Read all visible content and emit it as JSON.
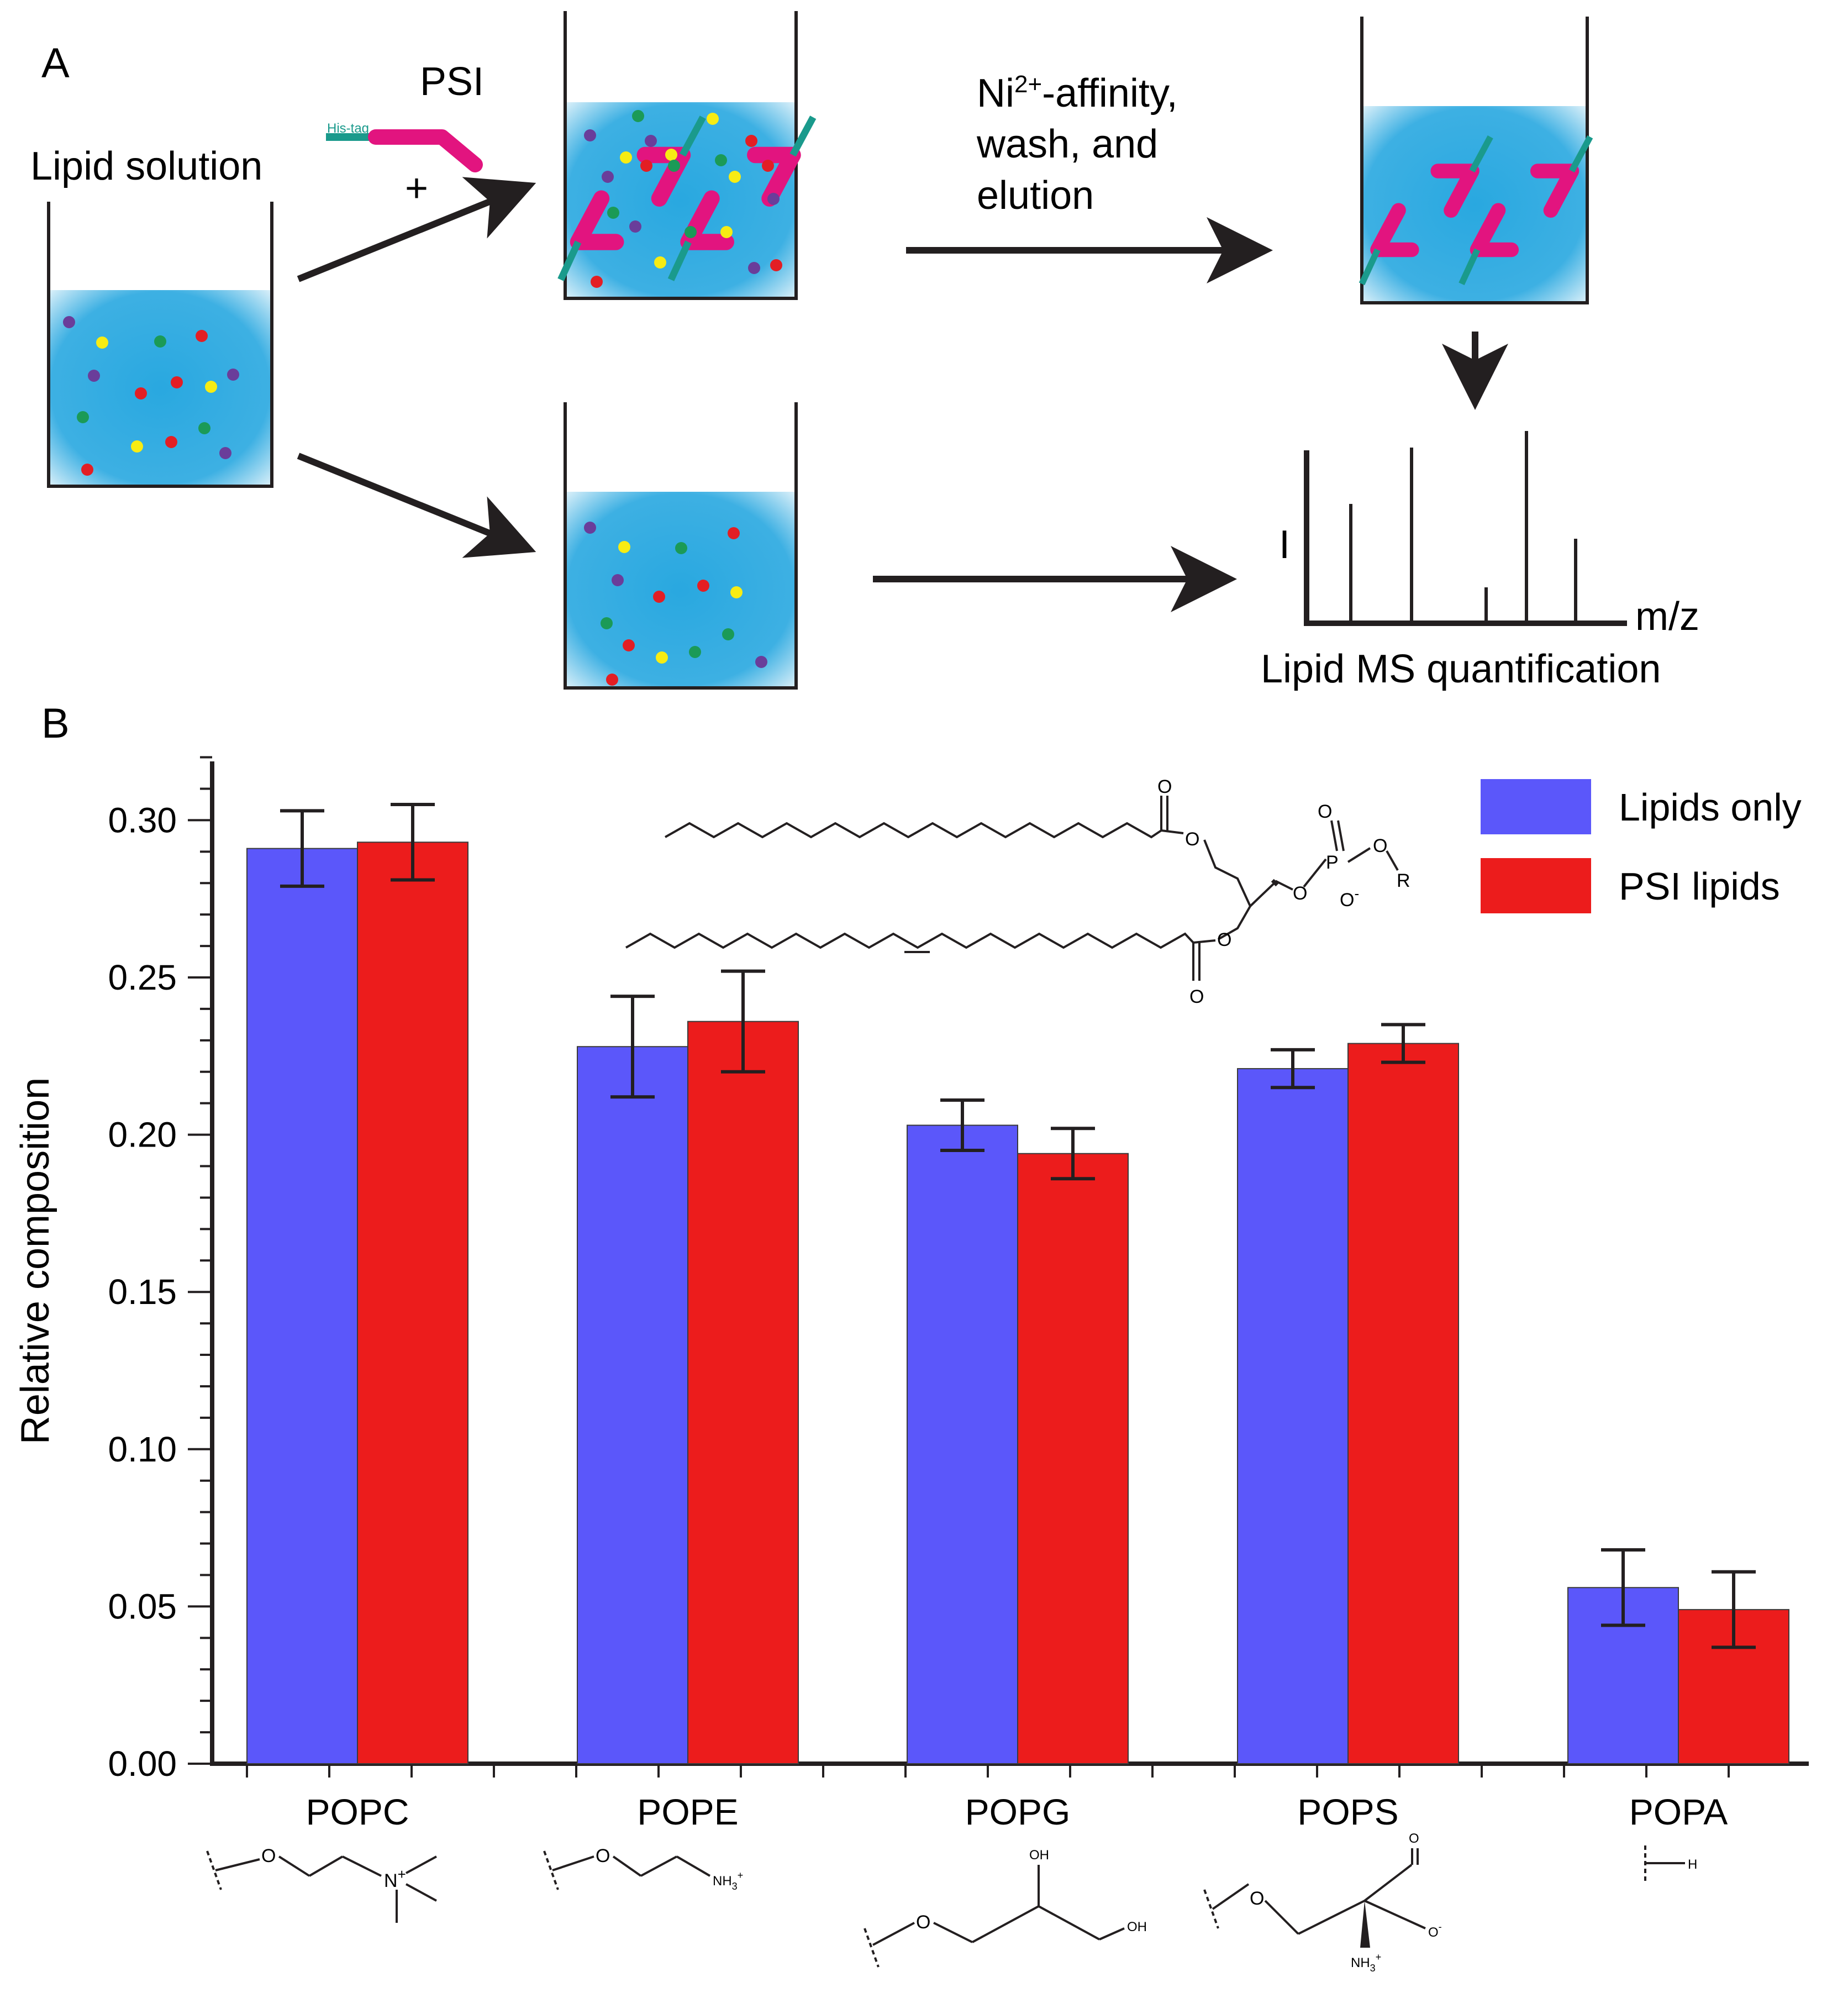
{
  "panel_a": {
    "label": "A",
    "lipid_solution_label": "Lipid solution",
    "psi_label": "PSI",
    "plus_sign": "+",
    "his_tag_label": "His-tag",
    "ni_line1_prefix": "Ni",
    "ni_superscript": "2+",
    "ni_line1_suffix": "-affinity,",
    "ni_line2": "wash, and",
    "ni_line3": "elution",
    "ms_y_label": "I",
    "ms_x_label": "m/z",
    "ms_caption": "Lipid MS quantification",
    "colors": {
      "psi_protein": "#e2147f",
      "his_tag": "#1a9a8c",
      "solution": "#29a8e0",
      "lipid_purple": "#6a3d9a",
      "lipid_yellow": "#f7ec13",
      "lipid_green": "#1b9a57",
      "lipid_red": "#e31e24"
    }
  },
  "panel_b": {
    "label": "B",
    "lipid_structure": {
      "oxygen": "O",
      "phosphorus": "P",
      "r_group": "R",
      "charge_minus": "-"
    },
    "headgroups": {
      "popc": {
        "o": "O",
        "n": "N",
        "charge": "+"
      },
      "pope": {
        "o": "O",
        "amine": "NH",
        "sub": "3",
        "charge": "+"
      },
      "popg": {
        "o": "O",
        "oh1": "OH",
        "oh2": "OH"
      },
      "pops": {
        "o": "O",
        "o2": "O",
        "o3": "O",
        "charge_minus": "-",
        "amine": "NH",
        "sub": "3",
        "charge": "+"
      },
      "popa": {
        "h": "H"
      }
    }
  },
  "chart_data": {
    "type": "bar",
    "title": "",
    "xlabel": "",
    "ylabel": "Relative composition",
    "ylim": [
      0.0,
      0.32
    ],
    "yticks": [
      "0.00",
      "0.05",
      "0.10",
      "0.15",
      "0.20",
      "0.25",
      "0.30"
    ],
    "ytick_values": [
      0.0,
      0.05,
      0.1,
      0.15,
      0.2,
      0.25,
      0.3
    ],
    "categories": [
      "POPC",
      "POPE",
      "POPG",
      "POPS",
      "POPA"
    ],
    "series": [
      {
        "name": "Lipids only",
        "color": "#5b57fa",
        "values": [
          0.291,
          0.228,
          0.203,
          0.221,
          0.056
        ],
        "errors": [
          0.012,
          0.016,
          0.008,
          0.006,
          0.012
        ]
      },
      {
        "name": "PSI lipids",
        "color": "#ec1c1c",
        "values": [
          0.293,
          0.236,
          0.194,
          0.229,
          0.049
        ],
        "errors": [
          0.012,
          0.016,
          0.008,
          0.006,
          0.012
        ]
      }
    ],
    "legend_position": "top-right",
    "grid": false
  }
}
